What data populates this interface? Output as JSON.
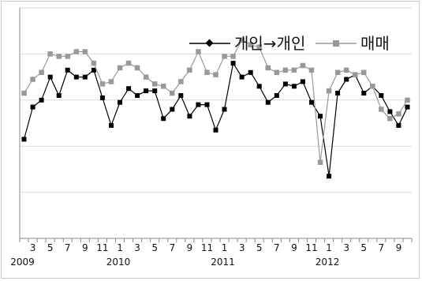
{
  "chart_data": {
    "type": "line",
    "x": [
      2,
      3,
      4,
      5,
      6,
      7,
      8,
      9,
      10,
      11,
      12,
      1,
      2,
      3,
      4,
      5,
      6,
      7,
      8,
      9,
      10,
      11,
      12,
      1,
      2,
      3,
      4,
      5,
      6,
      7,
      8,
      9,
      10,
      11,
      12,
      1,
      2,
      3,
      4,
      5,
      6,
      7,
      8,
      9,
      10
    ],
    "x_tick_labels": [
      "3",
      "5",
      "7",
      "9",
      "11",
      "1",
      "3",
      "5",
      "7",
      "9",
      "11",
      "1",
      "3",
      "5",
      "7",
      "9",
      "11",
      "1",
      "3",
      "5",
      "7",
      "9"
    ],
    "year_labels": [
      "2009",
      "2010",
      "2011",
      "2012"
    ],
    "ylim": [
      0,
      10
    ],
    "grid": "horizontal",
    "legend_position": "top-right",
    "series": [
      {
        "name": "개인→개인",
        "color": "#000000",
        "marker": "diamond",
        "values": [
          4.3,
          5.7,
          6.0,
          7.0,
          6.2,
          7.3,
          7.0,
          7.0,
          7.3,
          6.1,
          4.9,
          5.9,
          6.5,
          6.2,
          6.4,
          6.4,
          5.2,
          5.6,
          6.2,
          5.3,
          5.8,
          5.8,
          4.7,
          5.6,
          7.6,
          7.0,
          7.2,
          6.6,
          5.9,
          6.2,
          6.7,
          6.6,
          6.8,
          5.9,
          5.3,
          2.7,
          6.3,
          6.9,
          7.1,
          6.3,
          6.6,
          6.2,
          5.5,
          4.9,
          5.7
        ]
      },
      {
        "name": "매매",
        "color": "#999999",
        "marker": "square",
        "values": [
          6.3,
          6.9,
          7.2,
          8.0,
          7.9,
          7.9,
          8.1,
          8.1,
          7.6,
          6.7,
          6.8,
          7.4,
          7.6,
          7.4,
          7.0,
          6.7,
          6.6,
          6.3,
          6.8,
          7.3,
          8.1,
          7.2,
          7.1,
          7.9,
          7.9,
          8.6,
          8.4,
          8.3,
          7.4,
          7.2,
          7.3,
          7.3,
          7.5,
          7.3,
          3.3,
          6.4,
          7.2,
          7.3,
          7.1,
          7.2,
          6.6,
          5.6,
          5.2,
          5.4,
          6.0
        ]
      }
    ]
  }
}
